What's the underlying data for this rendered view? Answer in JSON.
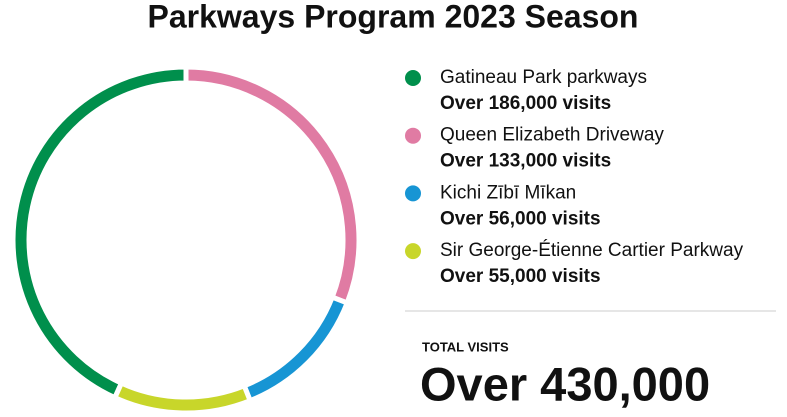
{
  "chart_data": {
    "type": "pie",
    "donut": true,
    "title": "Parkways Program 2023 Season",
    "categories": [
      "Gatineau Park parkways",
      "Queen Elizabeth Driveway",
      "Kichi Zībī Mīkan",
      "Sir George-Étienne Cartier Parkway"
    ],
    "values": [
      186000,
      133000,
      56000,
      55000
    ],
    "value_labels": [
      "Over 186,000 visits",
      "Over 133,000 visits",
      "Over 56,000 visits",
      "Over 55,000 visits"
    ],
    "colors": [
      "#008f4c",
      "#e07ba3",
      "#1795d4",
      "#c8d62a"
    ],
    "legend": "right",
    "total_title": "TOTAL VISITS",
    "total": "Over 430,000"
  }
}
